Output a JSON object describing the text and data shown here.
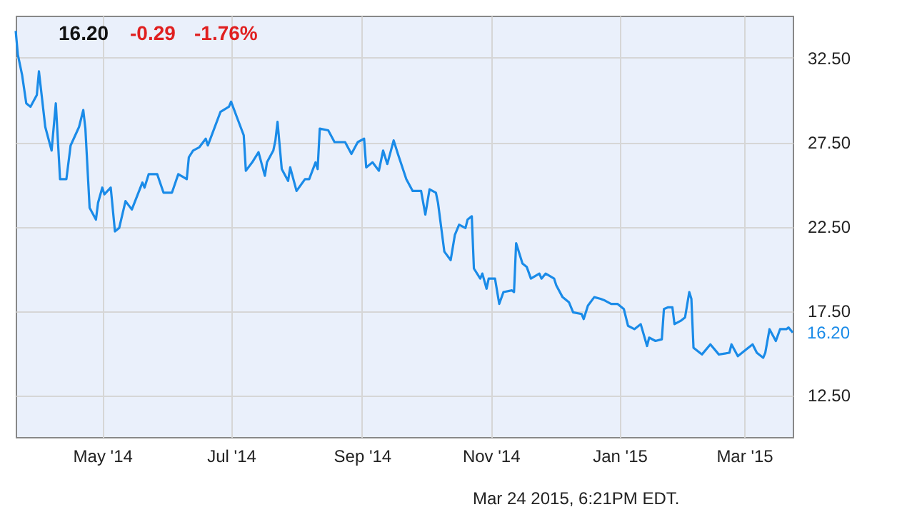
{
  "chart_data": {
    "type": "line",
    "x": [
      "2014-03-21",
      "2014-03-22",
      "2014-03-24",
      "2014-03-26",
      "2014-03-28",
      "2014-03-31",
      "2014-04-01",
      "2014-04-04",
      "2014-04-07",
      "2014-04-09",
      "2014-04-11",
      "2014-04-14",
      "2014-04-16",
      "2014-04-20",
      "2014-04-22",
      "2014-04-23",
      "2014-04-25",
      "2014-04-28",
      "2014-04-29",
      "2014-05-01",
      "2014-05-02",
      "2014-05-05",
      "2014-05-07",
      "2014-05-09",
      "2014-05-12",
      "2014-05-15",
      "2014-05-20",
      "2014-05-21",
      "2014-05-23",
      "2014-05-27",
      "2014-05-30",
      "2014-06-03",
      "2014-06-06",
      "2014-06-10",
      "2014-06-11",
      "2014-06-13",
      "2014-06-16",
      "2014-06-19",
      "2014-06-20",
      "2014-06-23",
      "2014-06-26",
      "2014-06-30",
      "2014-07-01",
      "2014-07-04",
      "2014-07-07",
      "2014-07-08",
      "2014-07-11",
      "2014-07-14",
      "2014-07-17",
      "2014-07-18",
      "2014-07-21",
      "2014-07-22",
      "2014-07-23",
      "2014-07-25",
      "2014-07-28",
      "2014-07-29",
      "2014-08-01",
      "2014-08-05",
      "2014-08-07",
      "2014-08-10",
      "2014-08-11",
      "2014-08-12",
      "2014-08-16",
      "2014-08-19",
      "2014-08-24",
      "2014-08-27",
      "2014-08-30",
      "2014-09-02",
      "2014-09-03",
      "2014-09-06",
      "2014-09-09",
      "2014-09-11",
      "2014-09-13",
      "2014-09-16",
      "2014-09-18",
      "2014-09-22",
      "2014-09-25",
      "2014-09-29",
      "2014-10-01",
      "2014-10-03",
      "2014-10-06",
      "2014-10-07",
      "2014-10-10",
      "2014-10-13",
      "2014-10-15",
      "2014-10-17",
      "2014-10-20",
      "2014-10-21",
      "2014-10-23",
      "2014-10-24",
      "2014-10-27",
      "2014-10-28",
      "2014-10-30",
      "2014-10-31",
      "2014-11-03",
      "2014-11-05",
      "2014-11-07",
      "2014-11-11",
      "2014-11-12",
      "2014-11-13",
      "2014-11-16",
      "2014-11-18",
      "2014-11-20",
      "2014-11-24",
      "2014-11-25",
      "2014-11-27",
      "2014-12-01",
      "2014-12-02",
      "2014-12-05",
      "2014-12-08",
      "2014-12-10",
      "2014-12-14",
      "2014-12-15",
      "2014-12-17",
      "2014-12-20",
      "2014-12-23",
      "2014-12-25",
      "2014-12-28",
      "2014-12-31",
      "2015-01-03",
      "2015-01-05",
      "2015-01-08",
      "2015-01-11",
      "2015-01-14",
      "2015-01-15",
      "2015-01-18",
      "2015-01-21",
      "2015-01-22",
      "2015-01-24",
      "2015-01-26",
      "2015-01-27",
      "2015-01-30",
      "2015-02-01",
      "2015-02-03",
      "2015-02-04",
      "2015-02-05",
      "2015-02-08",
      "2015-02-09",
      "2015-02-13",
      "2015-02-17",
      "2015-02-22",
      "2015-02-23",
      "2015-02-26",
      "2015-03-02",
      "2015-03-05",
      "2015-03-07",
      "2015-03-10",
      "2015-03-11",
      "2015-03-13",
      "2015-03-16",
      "2015-03-18",
      "2015-03-21",
      "2015-03-22",
      "2015-03-24"
    ],
    "series": [
      {
        "color": "#1a8be8",
        "values": [
          34.1,
          32.7,
          31.5,
          29.8,
          29.6,
          30.3,
          31.7,
          28.4,
          27.0,
          29.8,
          25.3,
          25.3,
          27.3,
          28.4,
          29.4,
          28.3,
          23.6,
          22.9,
          23.9,
          24.8,
          24.4,
          24.8,
          22.2,
          22.4,
          24.0,
          23.5,
          25.1,
          24.8,
          25.6,
          25.6,
          24.5,
          24.5,
          25.6,
          25.3,
          26.6,
          27.0,
          27.2,
          27.7,
          27.3,
          28.3,
          29.3,
          29.6,
          29.9,
          28.9,
          27.9,
          25.8,
          26.3,
          26.9,
          25.5,
          26.3,
          27.0,
          27.6,
          28.7,
          25.9,
          25.2,
          26.0,
          24.6,
          25.3,
          25.3,
          26.3,
          25.9,
          28.3,
          28.2,
          27.5,
          27.5,
          26.8,
          27.5,
          27.7,
          26.0,
          26.3,
          25.8,
          27.0,
          26.2,
          27.6,
          26.8,
          25.3,
          24.6,
          24.6,
          23.2,
          24.7,
          24.5,
          23.9,
          21.0,
          20.5,
          22.0,
          22.6,
          22.4,
          22.9,
          23.1,
          20.0,
          19.4,
          19.7,
          18.8,
          19.4,
          19.4,
          17.9,
          18.6,
          18.7,
          18.6,
          21.5,
          20.3,
          20.1,
          19.4,
          19.7,
          19.4,
          19.7,
          19.4,
          19.0,
          18.3,
          18.0,
          17.4,
          17.3,
          17.0,
          17.8,
          18.3,
          18.2,
          18.1,
          17.9,
          17.9,
          17.6,
          16.6,
          16.4,
          16.7,
          15.4,
          15.9,
          15.7,
          15.8,
          17.6,
          17.7,
          17.7,
          16.7,
          16.9,
          17.1,
          18.6,
          18.2,
          15.3,
          15.0,
          14.9,
          15.5,
          14.9,
          15.0,
          15.5,
          14.8,
          15.2,
          15.5,
          15.0,
          14.7,
          15.0,
          16.4,
          15.7,
          16.4,
          16.4,
          16.5,
          16.2
        ]
      }
    ],
    "xlim": [
      "2014-03-21",
      "2015-03-24"
    ],
    "xticks": [
      {
        "value": "2014-05-01",
        "label": "May '14"
      },
      {
        "value": "2014-07-01",
        "label": "Jul '14"
      },
      {
        "value": "2014-09-01",
        "label": "Sep '14"
      },
      {
        "value": "2014-11-01",
        "label": "Nov '14"
      },
      {
        "value": "2015-01-01",
        "label": "Jan '15"
      },
      {
        "value": "2015-03-01",
        "label": "Mar '15"
      }
    ],
    "ylim": [
      10,
      35
    ],
    "yticks": [
      {
        "value": 12.5,
        "label": "12.50"
      },
      {
        "value": 17.5,
        "label": "17.50"
      },
      {
        "value": 22.5,
        "label": "22.50"
      },
      {
        "value": 27.5,
        "label": "27.50"
      },
      {
        "value": 32.5,
        "label": "32.50"
      }
    ],
    "grid": true,
    "marker": "none",
    "line_style": "solid",
    "annotations": [
      "16.20",
      "-0.29",
      "-1.76%",
      "Mar 24 2015, 6:21PM EDT.",
      {
        "text": "16.20",
        "x": "2015-03-24",
        "y": 16.2
      }
    ]
  }
}
